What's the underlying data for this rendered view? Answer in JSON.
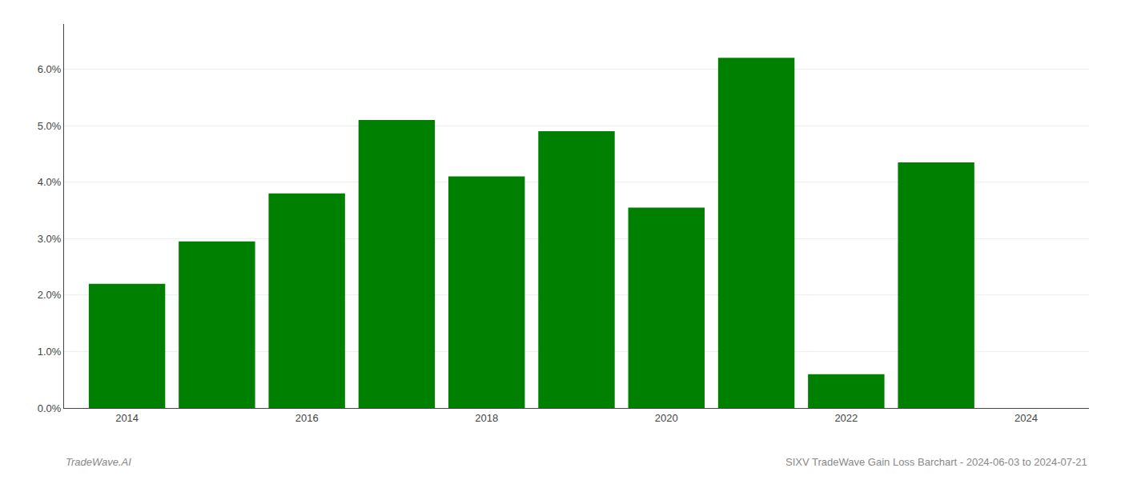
{
  "chart_data": {
    "type": "bar",
    "x": [
      2014,
      2015,
      2016,
      2017,
      2018,
      2019,
      2020,
      2021,
      2022,
      2023
    ],
    "values": [
      0.022,
      0.0295,
      0.038,
      0.051,
      0.041,
      0.049,
      0.0355,
      0.062,
      0.006,
      0.0435
    ],
    "color": "#008000",
    "xlim": [
      2013.3,
      2024.7
    ],
    "xticks": [
      2014,
      2016,
      2018,
      2020,
      2022,
      2024
    ],
    "ylim": [
      0,
      0.068
    ],
    "yticks": [
      {
        "value": 0.0,
        "label": "0.0%"
      },
      {
        "value": 0.01,
        "label": "1.0%"
      },
      {
        "value": 0.02,
        "label": "2.0%"
      },
      {
        "value": 0.03,
        "label": "3.0%"
      },
      {
        "value": 0.04,
        "label": "4.0%"
      },
      {
        "value": 0.05,
        "label": "5.0%"
      },
      {
        "value": 0.06,
        "label": "6.0%"
      }
    ],
    "grid": true,
    "annotations": [
      "TradeWave.AI",
      "SIXV TradeWave Gain Loss Barchart - 2024-06-03 to 2024-07-21"
    ]
  }
}
